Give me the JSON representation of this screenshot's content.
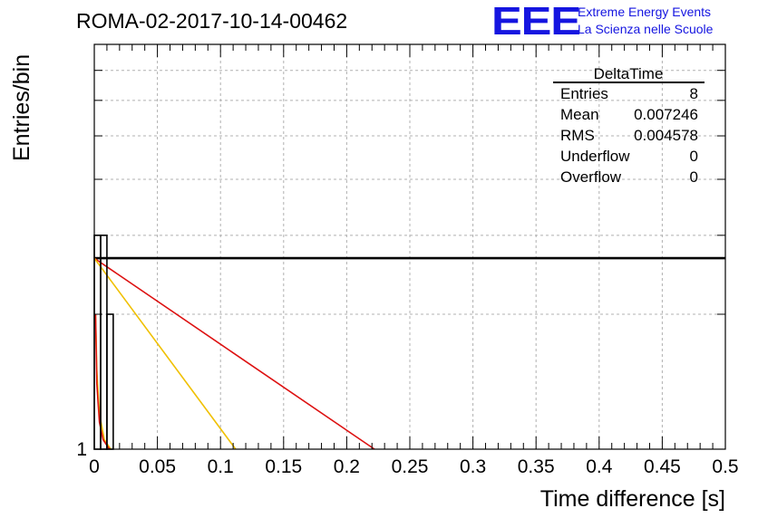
{
  "header": {
    "title": "ROMA-02-2017-10-14-00462",
    "logo": "EEE",
    "logo_line1": "Extreme Energy Events",
    "logo_line2": "La Scienza nelle Scuole"
  },
  "stats": {
    "name": "DeltaTime",
    "rows": [
      {
        "label": "Entries",
        "value": "8"
      },
      {
        "label": "Mean",
        "value": "0.007246"
      },
      {
        "label": "RMS",
        "value": "0.004578"
      },
      {
        "label": "Underflow",
        "value": "0"
      },
      {
        "label": "Overflow",
        "value": "0"
      }
    ]
  },
  "chart_data": {
    "type": "bar",
    "title": "ROMA-02-2017-10-14-00462",
    "xlabel": "Time difference [s]",
    "ylabel": "Entries/bin",
    "xlim": [
      0,
      0.5
    ],
    "ylim_log": [
      1,
      8
    ],
    "log_y": true,
    "grid": true,
    "x_ticks": [
      "0",
      "0.05",
      "0.1",
      "0.15",
      "0.2",
      "0.25",
      "0.3",
      "0.35",
      "0.4",
      "0.45",
      "0.5"
    ],
    "y_tick_labels": [
      "1"
    ],
    "histogram": {
      "bin_edges": [
        0,
        0.005,
        0.01,
        0.015
      ],
      "counts": [
        3,
        3,
        2
      ]
    },
    "fits": [
      {
        "color": "#000000",
        "points": [
          [
            0,
            2.667
          ],
          [
            0.5,
            2.667
          ]
        ]
      },
      {
        "color": "#dd1111",
        "points": [
          [
            0,
            2.667
          ],
          [
            0.222,
            1
          ]
        ]
      },
      {
        "color": "#f0c000",
        "points": [
          [
            0,
            2.667
          ],
          [
            0.112,
            1
          ]
        ]
      },
      {
        "color": "#f0c000",
        "points": [
          [
            0.001,
            2.0
          ],
          [
            0.002,
            1.5
          ],
          [
            0.004,
            1.2
          ],
          [
            0.008,
            1.05
          ],
          [
            0.013,
            1
          ]
        ]
      },
      {
        "color": "#dd1111",
        "points": [
          [
            0.001,
            2.0
          ],
          [
            0.002,
            1.4
          ],
          [
            0.004,
            1.15
          ],
          [
            0.007,
            1.05
          ],
          [
            0.012,
            1
          ]
        ]
      }
    ]
  }
}
